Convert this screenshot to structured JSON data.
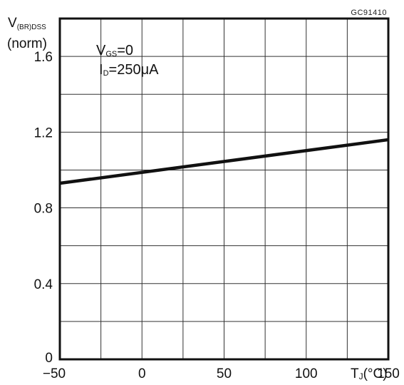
{
  "chart_data": {
    "type": "line",
    "figure_code": "GC91410",
    "ylabel": {
      "main": "V",
      "sub": "(BR)DSS",
      "unit": "(norm)"
    },
    "xlabel": {
      "main": "T",
      "sub": "J",
      "unit": "(°C)"
    },
    "conditions": [
      {
        "main": "V",
        "sub": "GS",
        "value": "=0"
      },
      {
        "main": "I",
        "sub": "D",
        "value": "=250μA"
      }
    ],
    "xlim": [
      -50,
      150
    ],
    "ylim": [
      0,
      1.8
    ],
    "x_ticks": [
      {
        "value": -50,
        "label": "−50"
      },
      {
        "value": 0,
        "label": "0"
      },
      {
        "value": 50,
        "label": "50"
      },
      {
        "value": 100,
        "label": "100"
      },
      {
        "value": 150,
        "label": "150"
      }
    ],
    "y_ticks": [
      {
        "value": 0,
        "label": "0"
      },
      {
        "value": 0.4,
        "label": "0.4"
      },
      {
        "value": 0.8,
        "label": "0.8"
      },
      {
        "value": 1.2,
        "label": "1.2"
      },
      {
        "value": 1.6,
        "label": "1.6"
      }
    ],
    "grid": true,
    "series": [
      {
        "x": [
          -50,
          150
        ],
        "y": [
          0.93,
          1.16
        ],
        "color": "#111111"
      }
    ]
  }
}
